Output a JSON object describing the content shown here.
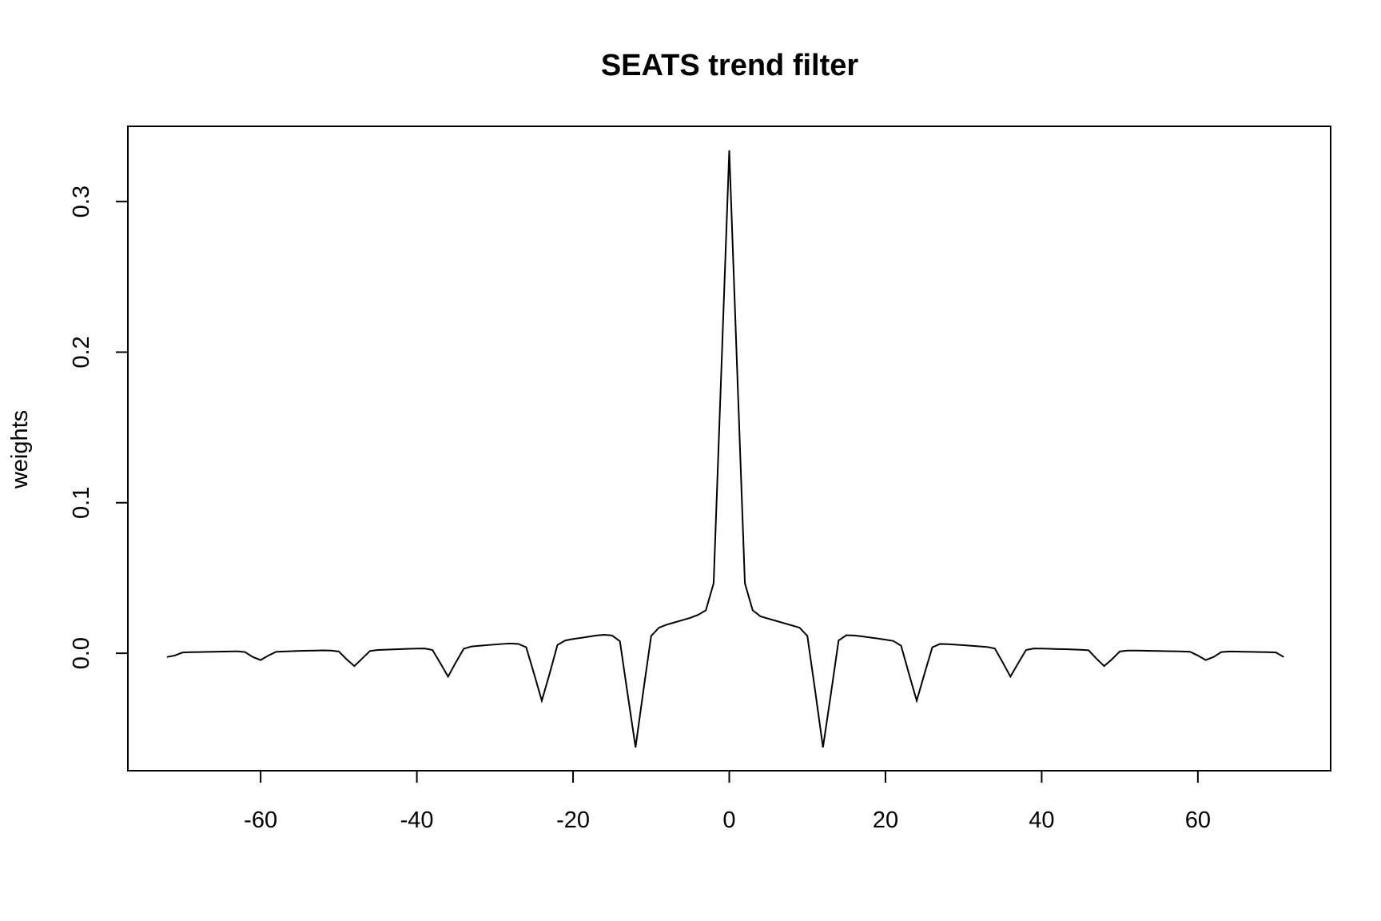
{
  "chart_data": {
    "type": "line",
    "title": "SEATS trend filter",
    "xlabel": "",
    "ylabel": "weights",
    "xlim": [
      -77,
      77
    ],
    "ylim": [
      -0.078,
      0.35
    ],
    "x_ticks": [
      -60,
      -40,
      -20,
      0,
      20,
      40,
      60
    ],
    "x_tick_labels": [
      "-60",
      "-40",
      "-20",
      "0",
      "20",
      "40",
      "60"
    ],
    "y_ticks": [
      0.0,
      0.1,
      0.2,
      0.3
    ],
    "y_tick_labels": [
      "0.0",
      "0.1",
      "0.2",
      "0.3"
    ],
    "grid": false,
    "legend": "none",
    "line_color": "#000000",
    "x": [
      -72,
      -71,
      -70,
      -69,
      -68,
      -67,
      -66,
      -65,
      -64,
      -63,
      -62,
      -61,
      -60,
      -59,
      -58,
      -57,
      -56,
      -55,
      -54,
      -53,
      -52,
      -51,
      -50,
      -49,
      -48,
      -47,
      -46,
      -45,
      -44,
      -43,
      -42,
      -41,
      -40,
      -39,
      -38,
      -37,
      -36,
      -35,
      -34,
      -33,
      -32,
      -31,
      -30,
      -29,
      -28,
      -27,
      -26,
      -25,
      -24,
      -23,
      -22,
      -21,
      -20,
      -19,
      -18,
      -17,
      -16,
      -15,
      -14,
      -13,
      -12,
      -11,
      -10,
      -9,
      -8,
      -7,
      -6,
      -5,
      -4,
      -3,
      -2,
      -1,
      0,
      1,
      2,
      3,
      4,
      5,
      6,
      7,
      8,
      9,
      10,
      11,
      12,
      13,
      14,
      15,
      16,
      17,
      18,
      19,
      20,
      21,
      22,
      23,
      24,
      25,
      26,
      27,
      28,
      29,
      30,
      31,
      32,
      33,
      34,
      35,
      36,
      37,
      38,
      39,
      40,
      41,
      42,
      43,
      44,
      45,
      46,
      47,
      48,
      49,
      50,
      51,
      52,
      53,
      54,
      55,
      56,
      57,
      58,
      59,
      60,
      61,
      62,
      63,
      64,
      65,
      66,
      67,
      68,
      69,
      70,
      71
    ],
    "y": [
      -0.0025,
      -0.0015,
      0.0005,
      0.0007,
      0.0008,
      0.0009,
      0.001,
      0.0011,
      0.0012,
      0.0013,
      0.0008,
      -0.0025,
      -0.0045,
      -0.0015,
      0.001,
      0.0012,
      0.0014,
      0.0016,
      0.0017,
      0.0018,
      0.0019,
      0.0018,
      0.0012,
      -0.004,
      -0.0085,
      -0.0035,
      0.0015,
      0.0022,
      0.0024,
      0.0026,
      0.0028,
      0.003,
      0.0031,
      0.0032,
      0.0022,
      -0.0065,
      -0.0155,
      -0.006,
      0.003,
      0.0045,
      0.005,
      0.0054,
      0.0058,
      0.0062,
      0.0065,
      0.0062,
      0.004,
      -0.0135,
      -0.0315,
      -0.0135,
      0.0055,
      0.0085,
      0.0095,
      0.0102,
      0.011,
      0.0118,
      0.0123,
      0.0118,
      0.008,
      -0.0275,
      -0.0625,
      -0.025,
      0.0115,
      0.017,
      0.019,
      0.0205,
      0.022,
      0.0235,
      0.0255,
      0.0285,
      0.0465,
      0.19,
      0.334,
      0.19,
      0.0465,
      0.0285,
      0.0245,
      0.023,
      0.0215,
      0.02,
      0.0185,
      0.017,
      0.0115,
      -0.025,
      -0.0625,
      -0.0275,
      0.0085,
      0.012,
      0.0118,
      0.0112,
      0.0105,
      0.0098,
      0.009,
      0.0082,
      0.005,
      -0.0135,
      -0.0315,
      -0.0135,
      0.004,
      0.0062,
      0.006,
      0.0057,
      0.0054,
      0.005,
      0.0046,
      0.0042,
      0.0032,
      -0.006,
      -0.0155,
      -0.0065,
      0.0022,
      0.0032,
      0.0031,
      0.003,
      0.0028,
      0.0027,
      0.0025,
      0.0023,
      0.002,
      -0.0035,
      -0.0085,
      -0.004,
      0.0012,
      0.0018,
      0.0018,
      0.0017,
      0.0016,
      0.0015,
      0.0014,
      0.0013,
      0.0012,
      0.001,
      -0.0015,
      -0.0045,
      -0.0025,
      0.0008,
      0.0012,
      0.0011,
      0.001,
      0.0009,
      0.0008,
      0.0007,
      0.0005,
      -0.0025
    ]
  }
}
